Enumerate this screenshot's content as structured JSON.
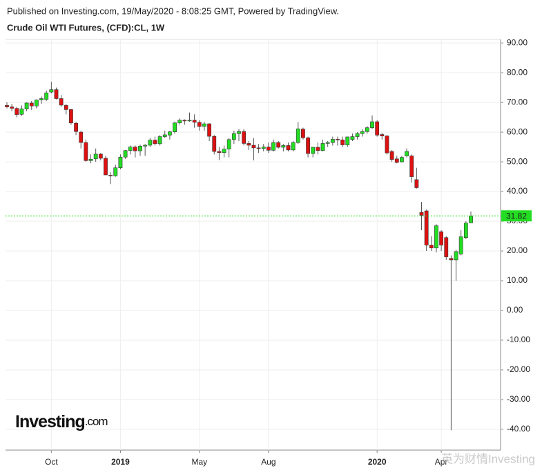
{
  "chart_data": {
    "type": "candlestick",
    "subtitle": "Published on Investing.com, 19/May/2020 - 8:08:25 GMT, Powered by TradingView.",
    "title": "Crude Oil WTI Futures, (CFD):CL, 1W",
    "logo_text": "Investing",
    "logo_suffix": ".com",
    "watermark": "英为财情Investing",
    "up_color": "#22dd22",
    "down_color": "#dd1111",
    "last_color": "#22dd22",
    "last_price": 31.82,
    "ylim": [
      -47,
      91.2
    ],
    "yticks": [
      {
        "value": 90,
        "label": "90.00"
      },
      {
        "value": 80,
        "label": "80.00"
      },
      {
        "value": 70,
        "label": "70.00"
      },
      {
        "value": 60,
        "label": "60.00"
      },
      {
        "value": 50,
        "label": "50.00"
      },
      {
        "value": 40,
        "label": "40.00"
      },
      {
        "value": 30,
        "label": "30.00"
      },
      {
        "value": 20,
        "label": "20.00"
      },
      {
        "value": 10,
        "label": "10.00"
      },
      {
        "value": 0,
        "label": "0.00"
      },
      {
        "value": -10,
        "label": "-10.00"
      },
      {
        "value": -20,
        "label": "-20.00"
      },
      {
        "value": -30,
        "label": "-30.00"
      },
      {
        "value": -40,
        "label": "-40.00"
      }
    ],
    "grid": true,
    "categories": [
      null,
      null,
      null,
      null,
      null,
      null,
      null,
      null,
      null,
      "Oct",
      null,
      null,
      null,
      null,
      null,
      null,
      null,
      null,
      null,
      null,
      null,
      null,
      null,
      "2019",
      null,
      null,
      null,
      null,
      null,
      null,
      null,
      null,
      null,
      null,
      null,
      null,
      null,
      null,
      null,
      "May",
      null,
      null,
      null,
      null,
      null,
      null,
      null,
      null,
      null,
      null,
      null,
      null,
      null,
      "Aug",
      null,
      null,
      null,
      null,
      null,
      null,
      null,
      null,
      null,
      null,
      null,
      null,
      null,
      null,
      null,
      null,
      null,
      null,
      null,
      null,
      null,
      "2020",
      null,
      null,
      null,
      null,
      null,
      null,
      null,
      null,
      null,
      null,
      null,
      null,
      "Apr",
      null,
      null,
      null,
      null,
      null,
      null
    ],
    "open": [
      69,
      68.5,
      68,
      66,
      67.8,
      69.8,
      68.8,
      70.8,
      71,
      73.5,
      74.3,
      71.3,
      69,
      67.6,
      63,
      60,
      56.5,
      50.4,
      51,
      52.6,
      51.2,
      45.5,
      45.3,
      48,
      51.6,
      53.8,
      55,
      53.7,
      55.3,
      55.6,
      57.3,
      56.1,
      58.5,
      59,
      60.1,
      63.1,
      64,
      63.9,
      64,
      63.3,
      61.9,
      62.8,
      58.6,
      53.5,
      53.1,
      54.3,
      57.5,
      59.5,
      60.2,
      56.2,
      55.6,
      54.7,
      54.5,
      55,
      53.9,
      56.5,
      54.9,
      55.5,
      54,
      56.5,
      61,
      58.1,
      52.8,
      54.9,
      53.8,
      56.2,
      56.5,
      57.6,
      57.4,
      55.7,
      57.5,
      58.5,
      59.5,
      60.2,
      61.5,
      63.5,
      59.2,
      58.7,
      53.5,
      51,
      50,
      52,
      52,
      44,
      33,
      33.5,
      22,
      21,
      26.5,
      24.5,
      17.5,
      17,
      19,
      24.5,
      29.5
    ],
    "high": [
      70,
      69.5,
      68.5,
      69,
      70,
      70.5,
      71,
      72,
      74,
      76.9,
      75,
      72.5,
      69.5,
      67.8,
      63.5,
      60.5,
      57.5,
      52.5,
      54.5,
      53,
      52,
      46.5,
      49,
      52.5,
      54,
      55.5,
      55.5,
      55.8,
      56,
      58,
      58.5,
      59,
      60.5,
      60.5,
      63.5,
      64.6,
      64.3,
      66.6,
      66,
      64,
      63.5,
      63,
      59,
      55,
      55.5,
      58,
      60.5,
      61,
      61,
      57,
      58,
      56,
      56,
      56.5,
      57.5,
      57,
      56,
      56.5,
      57,
      63.4,
      61.5,
      58.5,
      55,
      56.5,
      57.5,
      57,
      58.5,
      58.5,
      58.5,
      58.5,
      59.5,
      60,
      61,
      62,
      65.6,
      64,
      59.8,
      59,
      54,
      52,
      52,
      54.5,
      52.5,
      48,
      36.5,
      34,
      25,
      29,
      27,
      25,
      18.5,
      20.5,
      27,
      30,
      33.3
    ],
    "low": [
      68,
      67,
      65,
      65.5,
      67,
      67.5,
      68,
      69.5,
      70.5,
      73,
      71,
      68.5,
      66,
      62.5,
      59,
      54.5,
      50,
      49.5,
      50,
      50.5,
      45.5,
      42.5,
      45,
      47.5,
      51,
      52.5,
      51.5,
      52,
      52,
      55,
      55.5,
      55.5,
      58,
      57.5,
      59.5,
      62.5,
      62.5,
      63.5,
      61.5,
      60.5,
      60.5,
      57,
      52.5,
      50.6,
      51.5,
      51.5,
      56,
      57,
      55.5,
      54,
      50.5,
      53,
      53.5,
      53,
      53.5,
      54.5,
      53.5,
      53.5,
      53.5,
      56,
      57.5,
      51.5,
      51.5,
      52.5,
      53.5,
      55,
      55.5,
      55.5,
      55,
      55,
      57,
      57.5,
      58.5,
      59.5,
      61,
      58.5,
      57.5,
      52.5,
      50,
      49.5,
      49.8,
      51.5,
      43,
      41,
      27,
      20,
      20,
      19.5,
      20,
      17,
      -40.3,
      10,
      18.5,
      24,
      29.3
    ],
    "close": [
      68.5,
      68,
      65.9,
      67.8,
      69.8,
      68.8,
      70.8,
      71.3,
      73.2,
      74.3,
      71.3,
      69.1,
      67.6,
      63.1,
      60.2,
      56.5,
      50.4,
      50.9,
      52.6,
      51.2,
      45.6,
      45.3,
      48,
      51.6,
      53.8,
      55,
      53.7,
      55.3,
      55.6,
      57.3,
      56.1,
      58.5,
      59.1,
      60.1,
      63.1,
      64,
      63.9,
      64,
      63.3,
      61.9,
      62.8,
      58.6,
      53.5,
      53.1,
      54.3,
      57.5,
      59.5,
      60.2,
      56.2,
      55.6,
      54.7,
      54.5,
      55,
      53.9,
      56.5,
      54.9,
      55.5,
      54,
      56.5,
      61.1,
      58.1,
      52.8,
      54.9,
      53.8,
      56.2,
      56.5,
      57.6,
      57.4,
      55.7,
      58.4,
      58.5,
      59.5,
      60.2,
      61.5,
      63.5,
      59,
      58.7,
      53,
      50.8,
      49.8,
      51.5,
      53.5,
      45,
      41.3,
      32,
      22,
      21,
      28.5,
      22,
      18,
      17,
      19.8,
      24.8,
      29.4,
      31.82
    ]
  }
}
